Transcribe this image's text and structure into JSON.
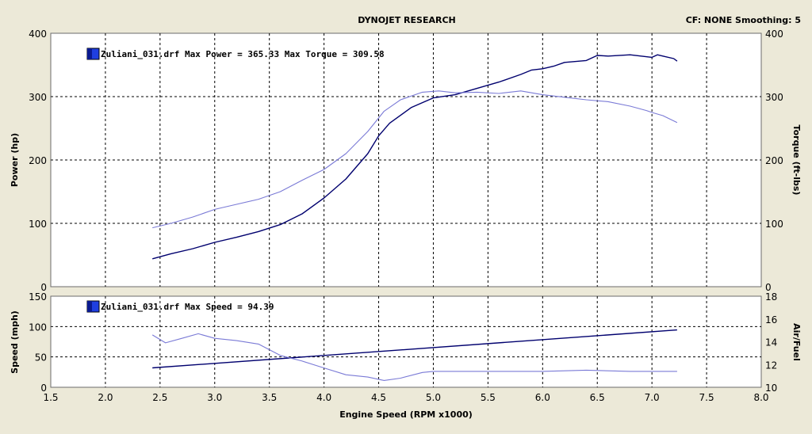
{
  "header": {
    "center_title": "DYNOJET RESEARCH",
    "right_info": "CF: NONE  Smoothing: 5"
  },
  "colors": {
    "power": "#00006e",
    "torque": "#7a7ad6",
    "speed": "#00006e",
    "airfuel": "#7a7ad6",
    "legend_swatch": "#1f3fe0"
  },
  "chart_data": [
    {
      "type": "line",
      "name": "power-torque-chart",
      "legend": "Zuliani_031.drf Max Power = 365.33 Max Torque = 309.58",
      "xlim": [
        1.5,
        8.0
      ],
      "xticks": [
        1.5,
        2.0,
        2.5,
        3.0,
        3.5,
        4.0,
        4.5,
        5.0,
        5.5,
        6.0,
        6.5,
        7.0,
        7.5,
        8.0
      ],
      "ylabel": "Power (hp)",
      "ylim": [
        0,
        400
      ],
      "yticks": [
        0,
        100,
        200,
        300,
        400
      ],
      "y2label": "Torque (ft-lbs)",
      "y2lim": [
        0,
        400
      ],
      "y2ticks": [
        0,
        100,
        200,
        300,
        400
      ],
      "grid": true,
      "series": [
        {
          "key": "power",
          "axis": "left",
          "x": [
            2.43,
            2.6,
            2.8,
            3.0,
            3.2,
            3.4,
            3.6,
            3.8,
            4.0,
            4.2,
            4.4,
            4.5,
            4.6,
            4.8,
            5.0,
            5.2,
            5.4,
            5.6,
            5.8,
            5.9,
            6.0,
            6.1,
            6.2,
            6.4,
            6.5,
            6.6,
            6.8,
            6.9,
            7.0,
            7.05,
            7.1,
            7.2,
            7.23
          ],
          "y": [
            44,
            52,
            60,
            70,
            78,
            87,
            98,
            115,
            140,
            170,
            210,
            238,
            258,
            283,
            298,
            303,
            313,
            323,
            335,
            342,
            344,
            348,
            354,
            357,
            365,
            364,
            366,
            364,
            362,
            366,
            364,
            360,
            356
          ]
        },
        {
          "key": "torque",
          "axis": "right",
          "x": [
            2.43,
            2.6,
            2.8,
            3.0,
            3.2,
            3.4,
            3.6,
            3.8,
            4.0,
            4.2,
            4.4,
            4.55,
            4.7,
            4.9,
            5.05,
            5.2,
            5.4,
            5.6,
            5.8,
            6.0,
            6.2,
            6.4,
            6.6,
            6.8,
            6.95,
            7.0,
            7.1,
            7.23
          ],
          "y": [
            93,
            100,
            110,
            122,
            130,
            138,
            150,
            168,
            185,
            210,
            245,
            277,
            295,
            307,
            309,
            306,
            307,
            305,
            309,
            303,
            299,
            295,
            292,
            285,
            278,
            275,
            270,
            259
          ]
        }
      ]
    },
    {
      "type": "line",
      "name": "speed-airfuel-chart",
      "legend": "Zuliani_031.drf Max Speed = 94.39",
      "xlabel": "Engine Speed (RPM x1000)",
      "xlim": [
        1.5,
        8.0
      ],
      "xticks": [
        1.5,
        2.0,
        2.5,
        3.0,
        3.5,
        4.0,
        4.5,
        5.0,
        5.5,
        6.0,
        6.5,
        7.0,
        7.5,
        8.0
      ],
      "ylabel": "Speed (mph)",
      "ylim": [
        0,
        150
      ],
      "yticks": [
        0,
        50,
        100,
        150
      ],
      "y2label": "Air/Fuel",
      "y2lim": [
        10,
        18
      ],
      "y2ticks": [
        10,
        12,
        14,
        16,
        18
      ],
      "grid": true,
      "series": [
        {
          "key": "speed",
          "axis": "left",
          "x": [
            2.43,
            7.23
          ],
          "y": [
            32,
            94.39
          ]
        },
        {
          "key": "airfuel",
          "axis": "right",
          "x": [
            2.43,
            2.55,
            2.7,
            2.85,
            3.0,
            3.2,
            3.4,
            3.6,
            3.8,
            4.0,
            4.2,
            4.4,
            4.55,
            4.7,
            4.9,
            5.0,
            5.2,
            5.6,
            6.0,
            6.4,
            6.8,
            7.2,
            7.23
          ],
          "y": [
            14.6,
            13.9,
            14.3,
            14.7,
            14.3,
            14.1,
            13.8,
            12.8,
            12.3,
            11.7,
            11.1,
            10.9,
            10.6,
            10.8,
            11.3,
            11.4,
            11.4,
            11.4,
            11.4,
            11.5,
            11.4,
            11.4,
            11.4
          ]
        }
      ]
    }
  ]
}
